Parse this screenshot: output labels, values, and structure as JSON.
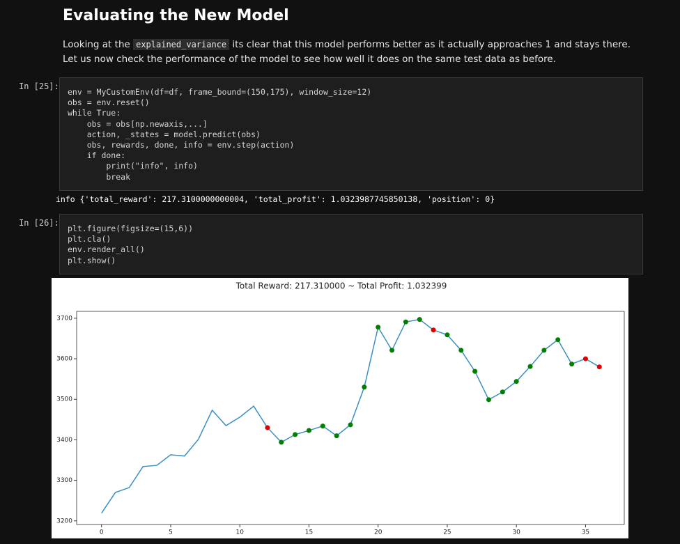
{
  "heading": "Evaluating the New Model",
  "paragraph": {
    "before": "Looking at the ",
    "code": "explained_variance",
    "after": " its clear that this model performs better as it actually approaches 1 and stays there. Let us now check the performance of the model to see how well it does on the same test data as before."
  },
  "cells": [
    {
      "prompt": "In [25]:",
      "code": [
        "env = MyCustomEnv(df=df, frame_bound=(150,175), window_size=12)",
        "obs = env.reset()",
        "while True:",
        "    obs = obs[np.newaxis,...]",
        "    action, _states = model.predict(obs)",
        "    obs, rewards, done, info = env.step(action)",
        "    if done:",
        "        print(\"info\", info)",
        "        break"
      ],
      "output": "info {'total_reward': 217.3100000000004, 'total_profit': 1.0323987745850138, 'position': 0}"
    },
    {
      "prompt": "In [26]:",
      "code": [
        "plt.figure(figsize=(15,6))",
        "plt.cla()",
        "env.render_all()",
        "plt.show()"
      ]
    }
  ],
  "chart_data": {
    "type": "line",
    "title": "Total Reward: 217.310000 ~ Total Profit: 1.032399",
    "color": "#3b8fc4",
    "x": [
      0,
      1,
      2,
      3,
      4,
      5,
      6,
      7,
      8,
      9,
      10,
      11,
      12,
      13,
      14,
      15,
      16,
      17,
      18,
      19,
      20,
      21,
      22,
      23,
      24,
      25,
      26,
      27,
      28,
      29,
      30,
      31,
      32,
      33,
      34,
      35,
      36
    ],
    "values": [
      3219,
      3270,
      3282,
      3334,
      3337,
      3363,
      3360,
      3401,
      3473,
      3435,
      3456,
      3483,
      3430,
      3394,
      3413,
      3423,
      3434,
      3410,
      3437,
      3530,
      3678,
      3621,
      3691,
      3697,
      3671,
      3659,
      3621,
      3569,
      3499,
      3518,
      3544,
      3581,
      3621,
      3647,
      3587,
      3600,
      3580
    ],
    "markers": [
      {
        "color": "#e00000",
        "x": [
          12,
          24,
          35,
          36
        ]
      },
      {
        "color": "#007f00",
        "x": [
          13,
          14,
          15,
          16,
          17,
          18,
          19,
          20,
          21,
          22,
          23,
          25,
          26,
          27,
          28,
          29,
          30,
          31,
          32,
          33,
          34
        ]
      }
    ],
    "xlim": [
      -1.8,
      37.8
    ],
    "xticks": [
      0,
      5,
      10,
      15,
      20,
      25,
      30,
      35
    ],
    "ylim": [
      3191,
      3717
    ],
    "yticks": [
      3200,
      3300,
      3400,
      3500,
      3600,
      3700
    ]
  }
}
